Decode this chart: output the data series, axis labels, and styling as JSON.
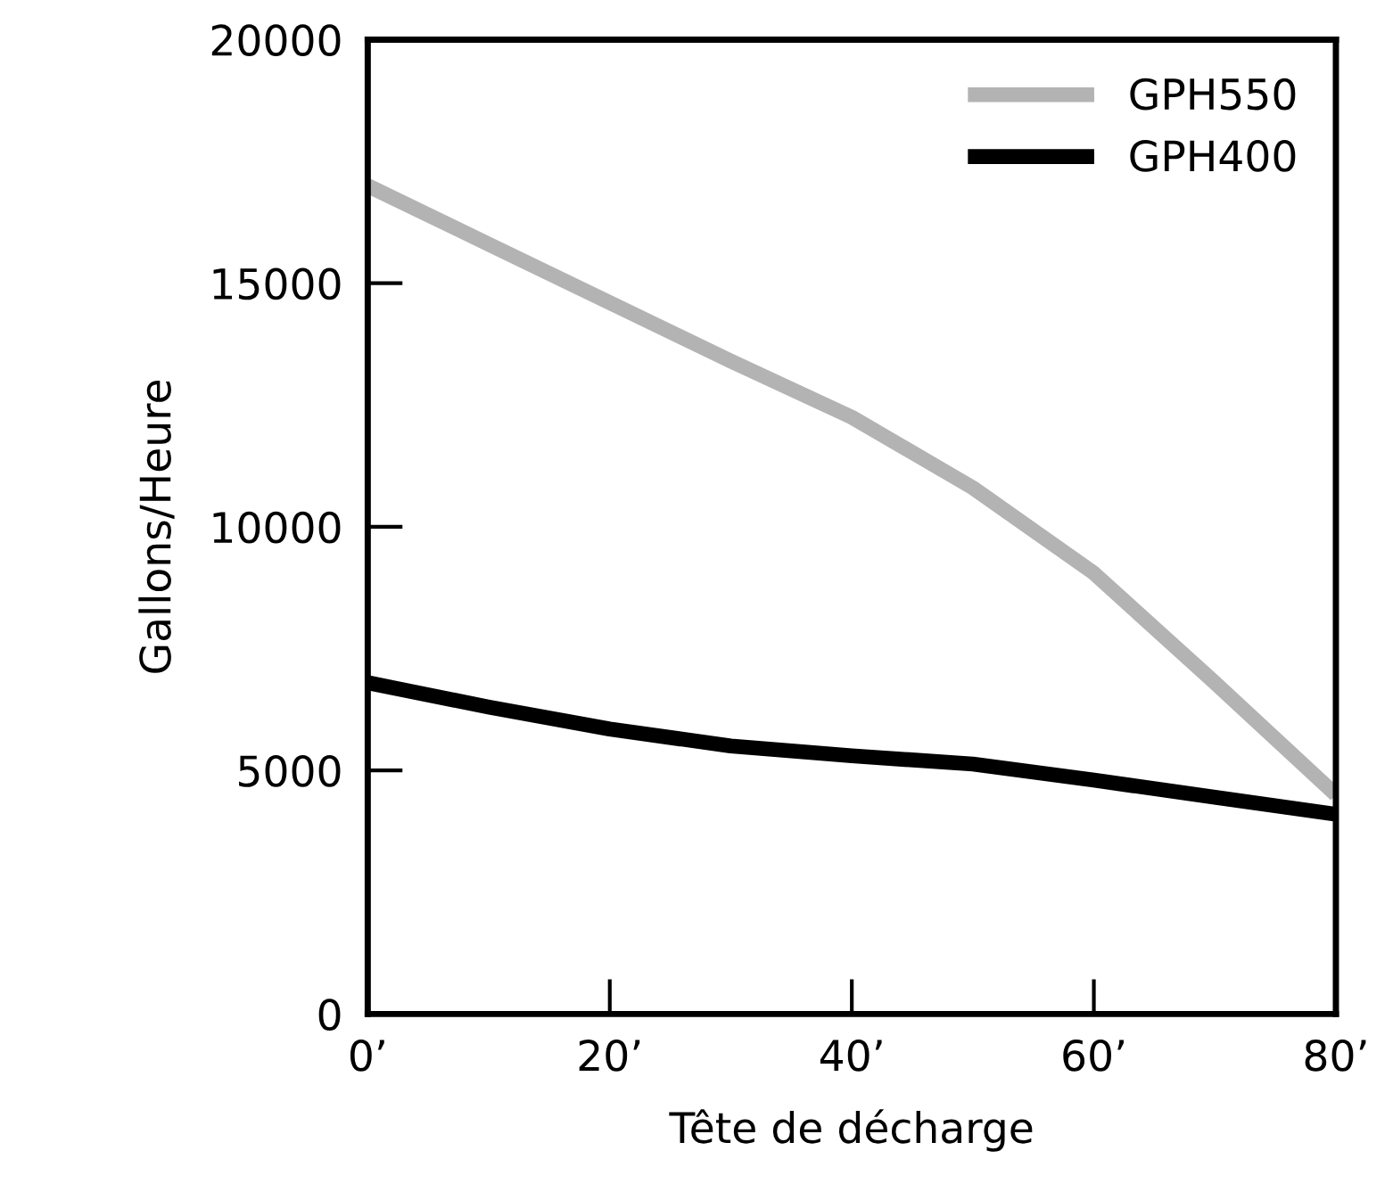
{
  "chart_data": {
    "type": "line",
    "xlabel": "Tête de décharge",
    "ylabel": "Gallons/Heure",
    "x": [
      0,
      10,
      20,
      30,
      40,
      50,
      60,
      70,
      80
    ],
    "series": [
      {
        "name": "GPH550",
        "color": "#b3b3b3",
        "values": [
          17000,
          15800,
          14600,
          13400,
          12250,
          10800,
          9050,
          6800,
          4500
        ]
      },
      {
        "name": "GPH400",
        "color": "#000000",
        "values": [
          6800,
          6300,
          5850,
          5500,
          5300,
          5130,
          4800,
          4450,
          4100
        ]
      }
    ],
    "xlim": [
      0,
      80
    ],
    "ylim": [
      0,
      20000
    ],
    "xticks": [
      {
        "value": 0,
        "label": "0’"
      },
      {
        "value": 20,
        "label": "20’"
      },
      {
        "value": 40,
        "label": "40’"
      },
      {
        "value": 60,
        "label": "60’"
      },
      {
        "value": 80,
        "label": "80’"
      }
    ],
    "yticks": [
      0,
      5000,
      10000,
      15000,
      20000
    ],
    "grid": false,
    "legend": "top right",
    "marker": "none",
    "line_style": "solid"
  }
}
